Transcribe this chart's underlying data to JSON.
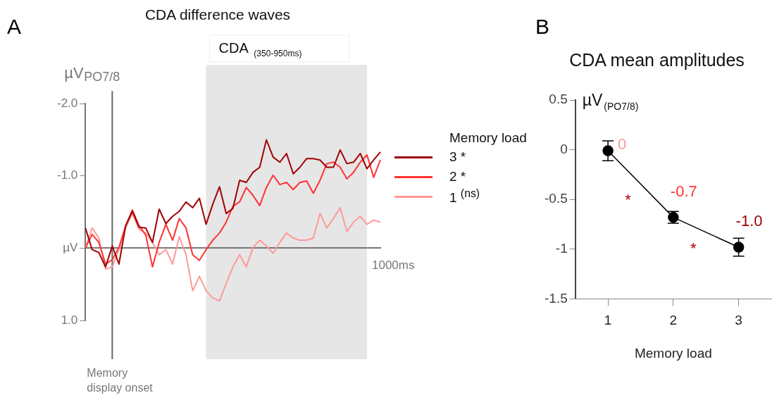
{
  "chart_data": [
    {
      "type": "line",
      "title": "CDA difference waves",
      "ylabel": "µV",
      "annotations": [
        "A",
        "PO7/8",
        "1000ms",
        "CDA $_{(350-950ms)}$",
        "Memory display onset"
      ],
      "legend_title": "Memory load",
      "legend": "right",
      "tick_labels": "y",
      "categories": [
        null,
        null,
        null,
        null,
        null,
        null,
        null,
        null,
        null,
        null,
        null,
        null,
        null,
        null,
        null,
        null,
        null,
        null,
        null,
        null,
        null,
        null,
        null,
        null,
        null,
        null,
        null,
        null,
        null,
        null,
        null,
        null,
        null,
        null,
        null,
        null,
        null,
        null,
        null,
        null,
        null,
        null,
        null,
        null,
        null
      ],
      "ylim": [
        1.0,
        -2.0
      ],
      "yticks": [
        {
          "value": -2,
          "label": "-2.0"
        },
        {
          "value": -1,
          "label": "-1.0"
        },
        {
          "value": 0,
          "label": "µV"
        },
        {
          "value": 1,
          "label": "1.0"
        }
      ],
      "series": [
        {
          "name": "3 *",
          "color": "#a00000",
          "values": [
            -0.28,
            0.02,
            0.06,
            0.26,
            -0.03,
            0.22,
            -0.31,
            -0.51,
            -0.29,
            -0.28,
            -0.08,
            -0.54,
            -0.34,
            -0.44,
            -0.51,
            -0.64,
            -0.56,
            -0.69,
            -0.33,
            -0.61,
            -0.85,
            -0.48,
            -0.55,
            -0.94,
            -0.91,
            -1.05,
            -1.12,
            -1.5,
            -1.26,
            -1.19,
            -1.31,
            -1.03,
            -1.12,
            -1.24,
            -1.24,
            -1.22,
            -1.12,
            -1.12,
            -1.36,
            -1.17,
            -1.19,
            -1.31,
            -1.1,
            -1.22,
            -1.33
          ]
        },
        {
          "name": "2 *",
          "color": "#ff3333",
          "values": [
            0,
            -0.19,
            -0.08,
            0.22,
            0.16,
            -0.01,
            -0.31,
            -0.53,
            -0.31,
            -0.18,
            0.26,
            -0.08,
            -0.33,
            -0.11,
            -0.41,
            -0.28,
            0.09,
            0.17,
            0.02,
            -0.11,
            -0.21,
            -0.36,
            -0.58,
            -0.64,
            -0.84,
            -0.73,
            -0.59,
            -0.84,
            -1.01,
            -0.88,
            -0.91,
            -0.81,
            -0.91,
            -0.93,
            -0.76,
            -0.94,
            -1.17,
            -1.19,
            -1.12,
            -0.96,
            -1.05,
            -1.19,
            -1.29,
            -0.98,
            -1.22
          ]
        },
        {
          "name": "1 $^{(ns)}$",
          "color": "#ff9999",
          "values": [
            -0.01,
            -0.28,
            -0.14,
            0.29,
            0.26,
            0.02,
            -0.28,
            -0.48,
            -0.26,
            -0.21,
            -0.08,
            0.09,
            0.02,
            0.22,
            -0.16,
            0.09,
            0.59,
            0.39,
            0.59,
            0.69,
            0.73,
            0.49,
            0.26,
            0.09,
            0.26,
            -0.01,
            -0.11,
            -0.03,
            0.07,
            -0.08,
            -0.21,
            -0.14,
            -0.11,
            -0.11,
            -0.14,
            -0.48,
            -0.28,
            -0.41,
            -0.56,
            -0.23,
            -0.36,
            -0.44,
            -0.33,
            -0.39,
            -0.36
          ]
        }
      ]
    },
    {
      "type": "line",
      "title": "CDA mean amplitudes",
      "xlabel": "Memory load",
      "ylabel": "µV$_{(PO7/8)}$",
      "categories": [
        "1",
        "2",
        "3"
      ],
      "ylim": [
        -1.5,
        0.5
      ],
      "yticks": [
        0.5,
        0,
        -0.5,
        -1,
        -1.5
      ],
      "marker": "circle",
      "annotations": [
        "B",
        "*",
        "*"
      ],
      "series": [
        {
          "color": "#000000",
          "values": [
            -0.01,
            -0.68,
            -0.98
          ],
          "errors": [
            0.1,
            0.06,
            0.09
          ],
          "value_labels": [
            "0",
            "-0.7",
            "-1.0"
          ]
        }
      ]
    }
  ]
}
